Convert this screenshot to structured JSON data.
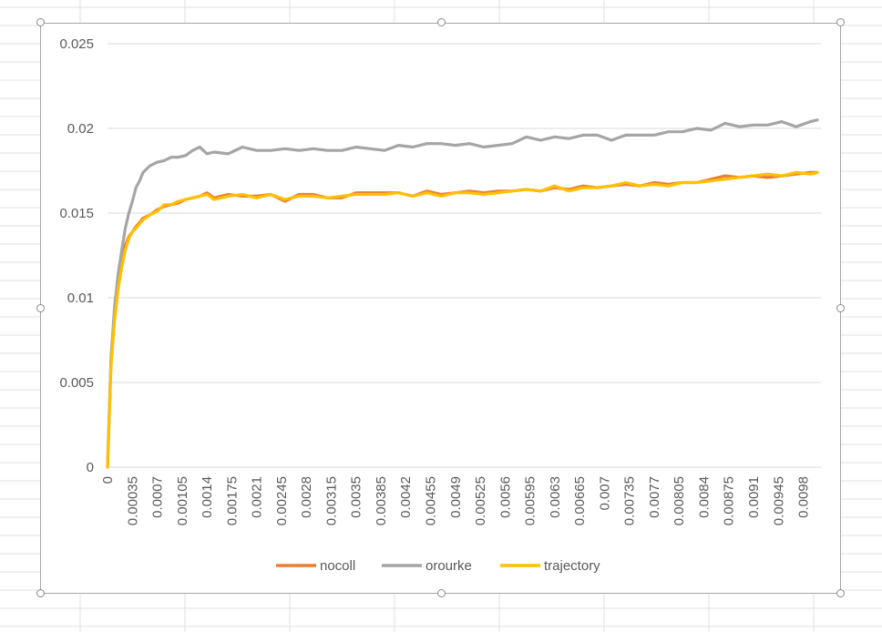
{
  "chart_data": {
    "type": "line",
    "title": "",
    "xlabel": "",
    "ylabel": "",
    "ylim": [
      0,
      0.025
    ],
    "yticks": [
      "0",
      "0.005",
      "0.01",
      "0.015",
      "0.02",
      "0.025"
    ],
    "xlim": [
      0,
      0.01005
    ],
    "xticks": [
      "0",
      "0.00035",
      "0.0007",
      "0.00105",
      "0.0014",
      "0.00175",
      "0.0021",
      "0.00245",
      "0.0028",
      "0.00315",
      "0.0035",
      "0.00385",
      "0.0042",
      "0.00455",
      "0.0049",
      "0.00525",
      "0.0056",
      "0.00595",
      "0.0063",
      "0.00665",
      "0.007",
      "0.00735",
      "0.0077",
      "0.00805",
      "0.0084",
      "0.00875",
      "0.0091",
      "0.00945",
      "0.0098"
    ],
    "grid": true,
    "legend_position": "bottom",
    "series": [
      {
        "name": "nocoll",
        "color": "#ed7d31",
        "points": [
          [
            0,
            0
          ],
          [
            5e-05,
            0.0063
          ],
          [
            0.0001,
            0.009
          ],
          [
            0.00015,
            0.0108
          ],
          [
            0.0002,
            0.0121
          ],
          [
            0.00025,
            0.0131
          ],
          [
            0.0003,
            0.0136
          ],
          [
            0.00035,
            0.0139
          ],
          [
            0.0004,
            0.0142
          ],
          [
            0.0005,
            0.0147
          ],
          [
            0.0006,
            0.0149
          ],
          [
            0.0007,
            0.0152
          ],
          [
            0.0008,
            0.0154
          ],
          [
            0.0009,
            0.0155
          ],
          [
            0.001,
            0.0156
          ],
          [
            0.0011,
            0.0158
          ],
          [
            0.0012,
            0.0159
          ],
          [
            0.0013,
            0.016
          ],
          [
            0.0014,
            0.0162
          ],
          [
            0.0015,
            0.0159
          ],
          [
            0.0017,
            0.0161
          ],
          [
            0.0019,
            0.016
          ],
          [
            0.0021,
            0.016
          ],
          [
            0.0023,
            0.0161
          ],
          [
            0.0025,
            0.0157
          ],
          [
            0.0027,
            0.0161
          ],
          [
            0.0029,
            0.0161
          ],
          [
            0.0031,
            0.0159
          ],
          [
            0.0033,
            0.0159
          ],
          [
            0.0035,
            0.0162
          ],
          [
            0.0037,
            0.0162
          ],
          [
            0.0039,
            0.0162
          ],
          [
            0.0041,
            0.0162
          ],
          [
            0.0043,
            0.016
          ],
          [
            0.0045,
            0.0163
          ],
          [
            0.0047,
            0.0161
          ],
          [
            0.0049,
            0.0162
          ],
          [
            0.0051,
            0.0163
          ],
          [
            0.0053,
            0.0162
          ],
          [
            0.0055,
            0.0163
          ],
          [
            0.0057,
            0.0163
          ],
          [
            0.0059,
            0.0164
          ],
          [
            0.0061,
            0.0163
          ],
          [
            0.0063,
            0.0165
          ],
          [
            0.0065,
            0.0164
          ],
          [
            0.0067,
            0.0166
          ],
          [
            0.0069,
            0.0165
          ],
          [
            0.0071,
            0.0166
          ],
          [
            0.0073,
            0.0167
          ],
          [
            0.0075,
            0.0166
          ],
          [
            0.0077,
            0.0168
          ],
          [
            0.0079,
            0.0167
          ],
          [
            0.0081,
            0.0168
          ],
          [
            0.0083,
            0.0168
          ],
          [
            0.0085,
            0.017
          ],
          [
            0.0087,
            0.0172
          ],
          [
            0.0089,
            0.0171
          ],
          [
            0.0091,
            0.0172
          ],
          [
            0.0093,
            0.0171
          ],
          [
            0.0095,
            0.0172
          ],
          [
            0.0097,
            0.0173
          ],
          [
            0.0099,
            0.0174
          ],
          [
            0.01,
            0.0174
          ]
        ]
      },
      {
        "name": "orourke",
        "color": "#a5a5a5",
        "points": [
          [
            0,
            0
          ],
          [
            5e-05,
            0.0065
          ],
          [
            0.0001,
            0.0095
          ],
          [
            0.00015,
            0.0114
          ],
          [
            0.0002,
            0.0128
          ],
          [
            0.00025,
            0.0141
          ],
          [
            0.0003,
            0.015
          ],
          [
            0.00035,
            0.0157
          ],
          [
            0.0004,
            0.0165
          ],
          [
            0.00045,
            0.0169
          ],
          [
            0.0005,
            0.0174
          ],
          [
            0.0006,
            0.0178
          ],
          [
            0.0007,
            0.018
          ],
          [
            0.0008,
            0.0181
          ],
          [
            0.0009,
            0.0183
          ],
          [
            0.001,
            0.0183
          ],
          [
            0.0011,
            0.0184
          ],
          [
            0.0012,
            0.0187
          ],
          [
            0.0013,
            0.0189
          ],
          [
            0.0014,
            0.0185
          ],
          [
            0.0015,
            0.0186
          ],
          [
            0.0017,
            0.0185
          ],
          [
            0.0019,
            0.0189
          ],
          [
            0.0021,
            0.0187
          ],
          [
            0.0023,
            0.0187
          ],
          [
            0.0025,
            0.0188
          ],
          [
            0.0027,
            0.0187
          ],
          [
            0.0029,
            0.0188
          ],
          [
            0.0031,
            0.0187
          ],
          [
            0.0033,
            0.0187
          ],
          [
            0.0035,
            0.0189
          ],
          [
            0.0037,
            0.0188
          ],
          [
            0.0039,
            0.0187
          ],
          [
            0.0041,
            0.019
          ],
          [
            0.0043,
            0.0189
          ],
          [
            0.0045,
            0.0191
          ],
          [
            0.0047,
            0.0191
          ],
          [
            0.0049,
            0.019
          ],
          [
            0.0051,
            0.0191
          ],
          [
            0.0053,
            0.0189
          ],
          [
            0.0055,
            0.019
          ],
          [
            0.0057,
            0.0191
          ],
          [
            0.0059,
            0.0195
          ],
          [
            0.0061,
            0.0193
          ],
          [
            0.0063,
            0.0195
          ],
          [
            0.0065,
            0.0194
          ],
          [
            0.0067,
            0.0196
          ],
          [
            0.0069,
            0.0196
          ],
          [
            0.0071,
            0.0193
          ],
          [
            0.0073,
            0.0196
          ],
          [
            0.0075,
            0.0196
          ],
          [
            0.0077,
            0.0196
          ],
          [
            0.0079,
            0.0198
          ],
          [
            0.0081,
            0.0198
          ],
          [
            0.0083,
            0.02
          ],
          [
            0.0085,
            0.0199
          ],
          [
            0.0087,
            0.0203
          ],
          [
            0.0089,
            0.0201
          ],
          [
            0.0091,
            0.0202
          ],
          [
            0.0093,
            0.0202
          ],
          [
            0.0095,
            0.0204
          ],
          [
            0.0097,
            0.0201
          ],
          [
            0.0099,
            0.0204
          ],
          [
            0.01,
            0.0205
          ]
        ]
      },
      {
        "name": "trajectory",
        "color": "#ffc000",
        "points": [
          [
            0,
            0
          ],
          [
            5e-05,
            0.006
          ],
          [
            0.0001,
            0.0087
          ],
          [
            0.00015,
            0.0105
          ],
          [
            0.0002,
            0.0118
          ],
          [
            0.00025,
            0.0128
          ],
          [
            0.0003,
            0.0135
          ],
          [
            0.00035,
            0.0139
          ],
          [
            0.0004,
            0.0141
          ],
          [
            0.0005,
            0.0146
          ],
          [
            0.0006,
            0.0149
          ],
          [
            0.0007,
            0.0151
          ],
          [
            0.0008,
            0.0155
          ],
          [
            0.0009,
            0.0155
          ],
          [
            0.001,
            0.0157
          ],
          [
            0.0011,
            0.0158
          ],
          [
            0.0012,
            0.0159
          ],
          [
            0.0013,
            0.016
          ],
          [
            0.0014,
            0.0161
          ],
          [
            0.0015,
            0.0158
          ],
          [
            0.0017,
            0.016
          ],
          [
            0.0019,
            0.0161
          ],
          [
            0.0021,
            0.0159
          ],
          [
            0.0023,
            0.0161
          ],
          [
            0.0025,
            0.0158
          ],
          [
            0.0027,
            0.016
          ],
          [
            0.0029,
            0.016
          ],
          [
            0.0031,
            0.0159
          ],
          [
            0.0033,
            0.016
          ],
          [
            0.0035,
            0.0161
          ],
          [
            0.0037,
            0.0161
          ],
          [
            0.0039,
            0.0161
          ],
          [
            0.0041,
            0.0162
          ],
          [
            0.0043,
            0.016
          ],
          [
            0.0045,
            0.0162
          ],
          [
            0.0047,
            0.016
          ],
          [
            0.0049,
            0.0162
          ],
          [
            0.0051,
            0.0162
          ],
          [
            0.0053,
            0.0161
          ],
          [
            0.0055,
            0.0162
          ],
          [
            0.0057,
            0.0163
          ],
          [
            0.0059,
            0.0164
          ],
          [
            0.0061,
            0.0163
          ],
          [
            0.0063,
            0.0166
          ],
          [
            0.0065,
            0.0163
          ],
          [
            0.0067,
            0.0165
          ],
          [
            0.0069,
            0.0165
          ],
          [
            0.0071,
            0.0166
          ],
          [
            0.0073,
            0.0168
          ],
          [
            0.0075,
            0.0166
          ],
          [
            0.0077,
            0.0167
          ],
          [
            0.0079,
            0.0166
          ],
          [
            0.0081,
            0.0168
          ],
          [
            0.0083,
            0.0168
          ],
          [
            0.0085,
            0.0169
          ],
          [
            0.0087,
            0.017
          ],
          [
            0.0089,
            0.0171
          ],
          [
            0.0091,
            0.0172
          ],
          [
            0.0093,
            0.0173
          ],
          [
            0.0095,
            0.0172
          ],
          [
            0.0097,
            0.0174
          ],
          [
            0.0099,
            0.0173
          ],
          [
            0.01,
            0.0174
          ]
        ]
      }
    ]
  }
}
